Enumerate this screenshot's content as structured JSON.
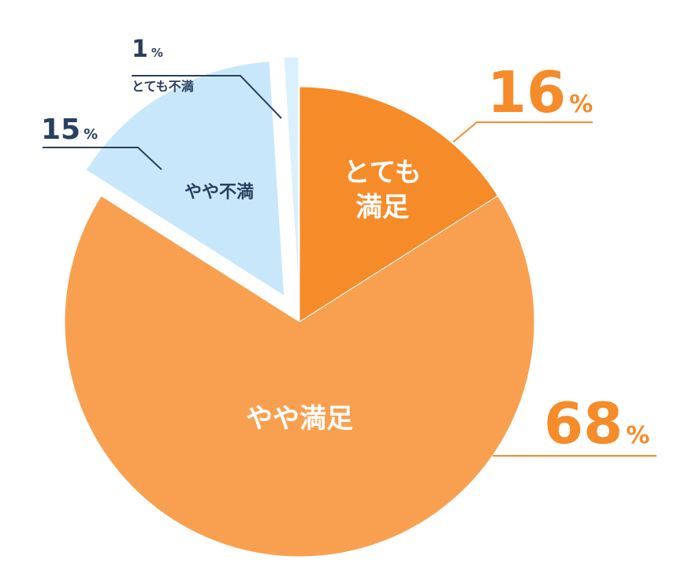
{
  "chart_data": {
    "type": "pie",
    "title": "",
    "unit": "%",
    "slices": [
      {
        "label": "とても満足",
        "label_lines": [
          "とても",
          "満足"
        ],
        "value": 16,
        "color": "#f68b2a",
        "value_color": "#f68b2a",
        "text_color": "#ffffff"
      },
      {
        "label": "やや満足",
        "label_lines": [
          "やや満足"
        ],
        "value": 68,
        "color": "#f9a050",
        "value_color": "#f68b2a",
        "text_color": "#ffffff"
      },
      {
        "label": "やや不満",
        "label_lines": [
          "やや不満"
        ],
        "value": 15,
        "color": "#c9e7fb",
        "value_color": "#2a3f5f",
        "text_color": "#2a3f5f",
        "exploded": true
      },
      {
        "label": "とても不満",
        "label_lines": [
          "とても不満"
        ],
        "value": 1,
        "color": "#daf0fd",
        "value_color": "#2a3f5f",
        "text_color": "#2a3f5f",
        "exploded": true
      }
    ]
  }
}
